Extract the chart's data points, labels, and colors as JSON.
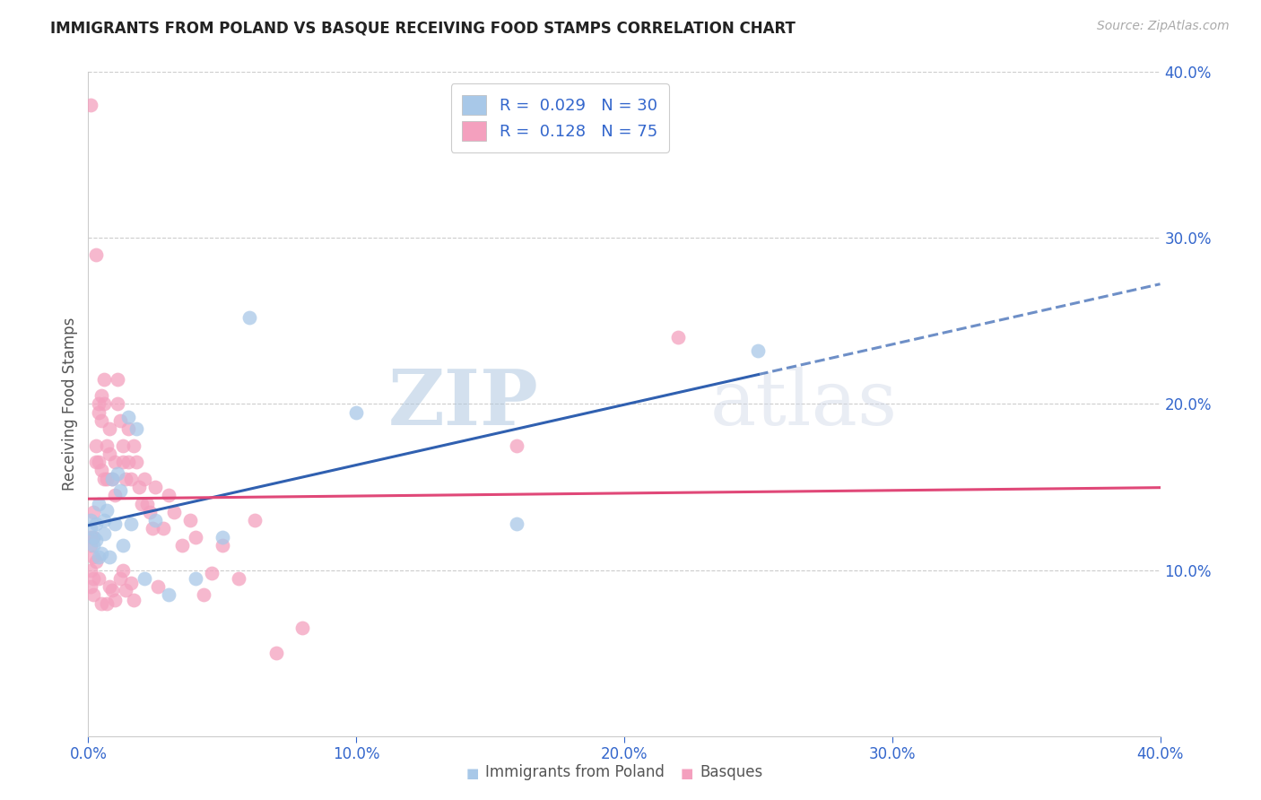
{
  "title": "IMMIGRANTS FROM POLAND VS BASQUE RECEIVING FOOD STAMPS CORRELATION CHART",
  "source": "Source: ZipAtlas.com",
  "ylabel": "Receiving Food Stamps",
  "xlabel_label1": "Immigrants from Poland",
  "xlabel_label2": "Basques",
  "xmin": 0.0,
  "xmax": 0.4,
  "ymin": 0.0,
  "ymax": 0.4,
  "legend_r1": "0.029",
  "legend_n1": "30",
  "legend_r2": "0.128",
  "legend_n2": "75",
  "color_blue": "#a8c8e8",
  "color_pink": "#f4a0be",
  "color_blue_line": "#3060b0",
  "color_pink_line": "#e04878",
  "color_blue_text": "#3366cc",
  "grid_color": "#cccccc",
  "background_color": "#ffffff",
  "watermark_zip": "ZIP",
  "watermark_atlas": "atlas",
  "poland_x": [
    0.001,
    0.001,
    0.002,
    0.002,
    0.003,
    0.003,
    0.004,
    0.004,
    0.005,
    0.006,
    0.006,
    0.007,
    0.008,
    0.009,
    0.01,
    0.011,
    0.012,
    0.013,
    0.015,
    0.016,
    0.018,
    0.021,
    0.025,
    0.03,
    0.04,
    0.05,
    0.06,
    0.1,
    0.16,
    0.25
  ],
  "poland_y": [
    0.13,
    0.125,
    0.12,
    0.115,
    0.128,
    0.118,
    0.14,
    0.108,
    0.11,
    0.122,
    0.13,
    0.136,
    0.108,
    0.155,
    0.128,
    0.158,
    0.148,
    0.115,
    0.192,
    0.128,
    0.185,
    0.095,
    0.13,
    0.085,
    0.095,
    0.12,
    0.252,
    0.195,
    0.128,
    0.232
  ],
  "basque_x": [
    0.001,
    0.001,
    0.001,
    0.001,
    0.001,
    0.002,
    0.002,
    0.002,
    0.002,
    0.002,
    0.003,
    0.003,
    0.003,
    0.003,
    0.004,
    0.004,
    0.004,
    0.004,
    0.005,
    0.005,
    0.005,
    0.005,
    0.006,
    0.006,
    0.006,
    0.007,
    0.007,
    0.007,
    0.008,
    0.008,
    0.008,
    0.009,
    0.009,
    0.01,
    0.01,
    0.01,
    0.011,
    0.011,
    0.012,
    0.012,
    0.013,
    0.013,
    0.013,
    0.014,
    0.014,
    0.015,
    0.015,
    0.016,
    0.016,
    0.017,
    0.017,
    0.018,
    0.019,
    0.02,
    0.021,
    0.022,
    0.023,
    0.024,
    0.025,
    0.026,
    0.028,
    0.03,
    0.032,
    0.035,
    0.038,
    0.04,
    0.043,
    0.046,
    0.05,
    0.056,
    0.062,
    0.07,
    0.08,
    0.16,
    0.22
  ],
  "basque_y": [
    0.38,
    0.12,
    0.115,
    0.1,
    0.09,
    0.135,
    0.12,
    0.108,
    0.095,
    0.085,
    0.29,
    0.175,
    0.165,
    0.105,
    0.2,
    0.195,
    0.165,
    0.095,
    0.205,
    0.19,
    0.16,
    0.08,
    0.215,
    0.2,
    0.155,
    0.175,
    0.155,
    0.08,
    0.185,
    0.17,
    0.09,
    0.155,
    0.088,
    0.165,
    0.145,
    0.082,
    0.215,
    0.2,
    0.19,
    0.095,
    0.175,
    0.165,
    0.1,
    0.155,
    0.088,
    0.185,
    0.165,
    0.155,
    0.092,
    0.175,
    0.082,
    0.165,
    0.15,
    0.14,
    0.155,
    0.14,
    0.135,
    0.125,
    0.15,
    0.09,
    0.125,
    0.145,
    0.135,
    0.115,
    0.13,
    0.12,
    0.085,
    0.098,
    0.115,
    0.095,
    0.13,
    0.05,
    0.065,
    0.175,
    0.24
  ]
}
